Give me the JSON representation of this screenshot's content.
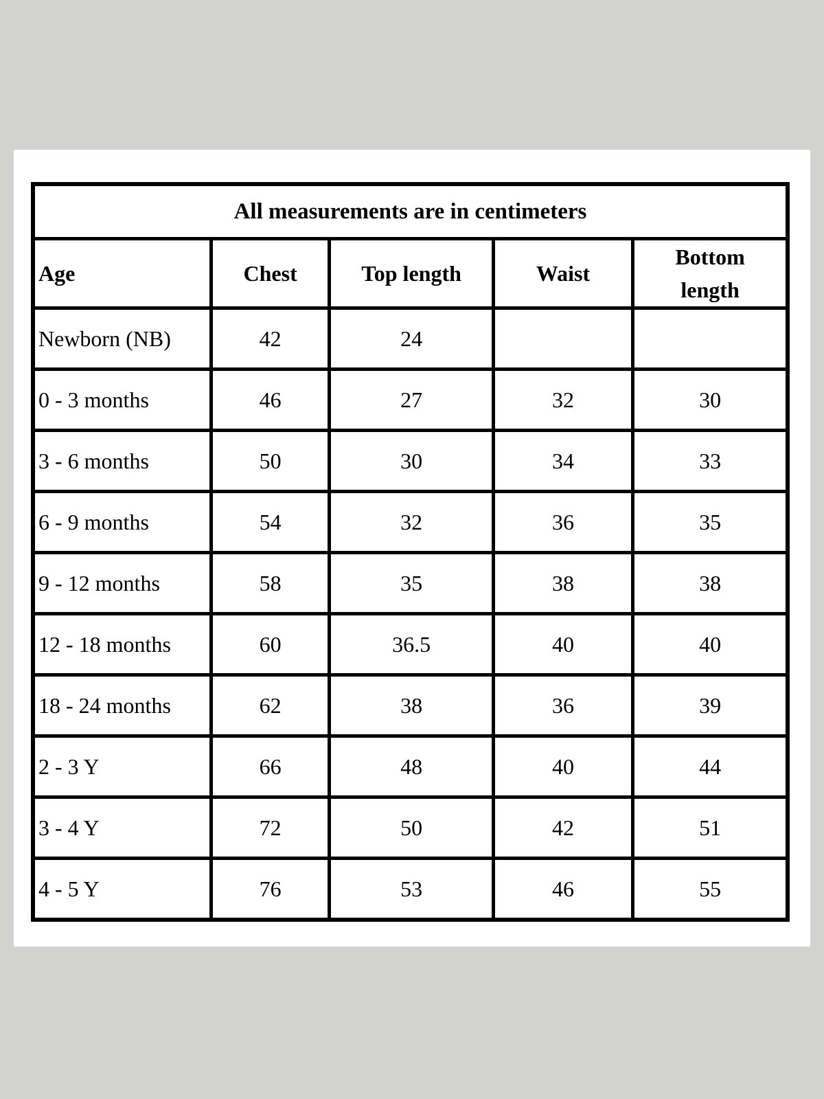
{
  "page": {
    "background_color": "#d2d3d0",
    "card_background_color": "#ffffff",
    "border_color": "#000000",
    "text_color": "#000000"
  },
  "table": {
    "title": "All measurements are in centimeters",
    "columns": [
      "Age",
      "Chest",
      "Top length",
      "Waist",
      "Bottom length"
    ],
    "rows": [
      {
        "age": "Newborn (NB)",
        "chest": "42",
        "top_length": "24",
        "waist": "",
        "bottom_length": ""
      },
      {
        "age": "0 - 3 months",
        "chest": "46",
        "top_length": "27",
        "waist": "32",
        "bottom_length": "30"
      },
      {
        "age": "3 - 6 months",
        "chest": "50",
        "top_length": "30",
        "waist": "34",
        "bottom_length": "33"
      },
      {
        "age": "6 - 9 months",
        "chest": "54",
        "top_length": "32",
        "waist": "36",
        "bottom_length": "35"
      },
      {
        "age": "9 - 12 months",
        "chest": "58",
        "top_length": "35",
        "waist": "38",
        "bottom_length": "38"
      },
      {
        "age": "12 - 18 months",
        "chest": "60",
        "top_length": "36.5",
        "waist": "40",
        "bottom_length": "40"
      },
      {
        "age": "18 - 24 months",
        "chest": "62",
        "top_length": "38",
        "waist": "36",
        "bottom_length": "39"
      },
      {
        "age": "2 - 3 Y",
        "chest": "66",
        "top_length": "48",
        "waist": "40",
        "bottom_length": "44"
      },
      {
        "age": "3 - 4 Y",
        "chest": "72",
        "top_length": "50",
        "waist": "42",
        "bottom_length": "51"
      },
      {
        "age": "4 - 5 Y",
        "chest": "76",
        "top_length": "53",
        "waist": "46",
        "bottom_length": "55"
      }
    ]
  }
}
